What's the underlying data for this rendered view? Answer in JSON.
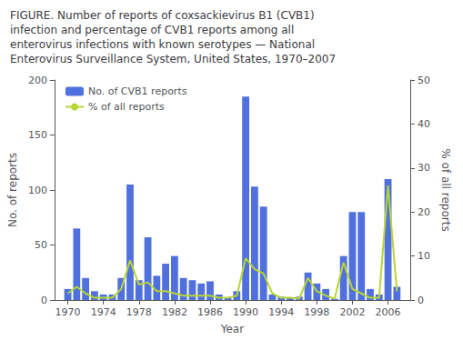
{
  "chart_data": {
    "type": "bar",
    "title": "FIGURE. Number of reports of coxsackievirus B1 (CVB1)\ninfection and percentage of CVB1 reports among all\nenterovirus infections with known serotypes — National\nEnterovirus Surveillance System, United States, 1970–2007",
    "x": [
      1970,
      1971,
      1972,
      1973,
      1974,
      1975,
      1976,
      1977,
      1978,
      1979,
      1980,
      1981,
      1982,
      1983,
      1984,
      1985,
      1986,
      1987,
      1988,
      1989,
      1990,
      1991,
      1992,
      1993,
      1994,
      1995,
      1996,
      1997,
      1998,
      1999,
      2000,
      2001,
      2002,
      2003,
      2004,
      2005,
      2006,
      2007
    ],
    "xlabel": "Year",
    "xlim": [
      1968.5,
      2008.5
    ],
    "xticks": [
      1970,
      1974,
      1978,
      1982,
      1986,
      1990,
      1994,
      1998,
      2002,
      2006
    ],
    "ylabel": "No. of reports",
    "ylim": [
      0,
      200
    ],
    "yticks": [
      0,
      50,
      100,
      150,
      200
    ],
    "y2label": "% of all reports",
    "y2lim": [
      0,
      50
    ],
    "y2ticks": [
      0,
      10,
      20,
      30,
      40,
      50
    ],
    "series": [
      {
        "name": "No. of CVB1 reports",
        "type": "bar",
        "values": [
          10,
          65,
          20,
          8,
          5,
          5,
          20,
          105,
          18,
          57,
          22,
          33,
          40,
          20,
          18,
          15,
          17,
          5,
          2,
          8,
          185,
          103,
          85,
          5,
          3,
          2,
          3,
          25,
          15,
          10,
          1,
          40,
          80,
          80,
          10,
          5,
          110,
          12
        ]
      },
      {
        "name": "% of all reports",
        "type": "line",
        "axis": "y2",
        "values": [
          1.5,
          3.0,
          1.5,
          0.5,
          0.5,
          0.5,
          2.5,
          9.0,
          3.5,
          4.0,
          2.0,
          2.0,
          1.5,
          1.0,
          1.0,
          1.0,
          1.0,
          0.5,
          0.5,
          1.0,
          9.5,
          7.0,
          6.0,
          1.5,
          0.5,
          0.5,
          0.3,
          5.0,
          2.0,
          1.0,
          0.3,
          8.5,
          2.5,
          1.5,
          0.5,
          0.5,
          26.0,
          2.0
        ]
      }
    ],
    "legend": "upper left",
    "grid": false
  }
}
